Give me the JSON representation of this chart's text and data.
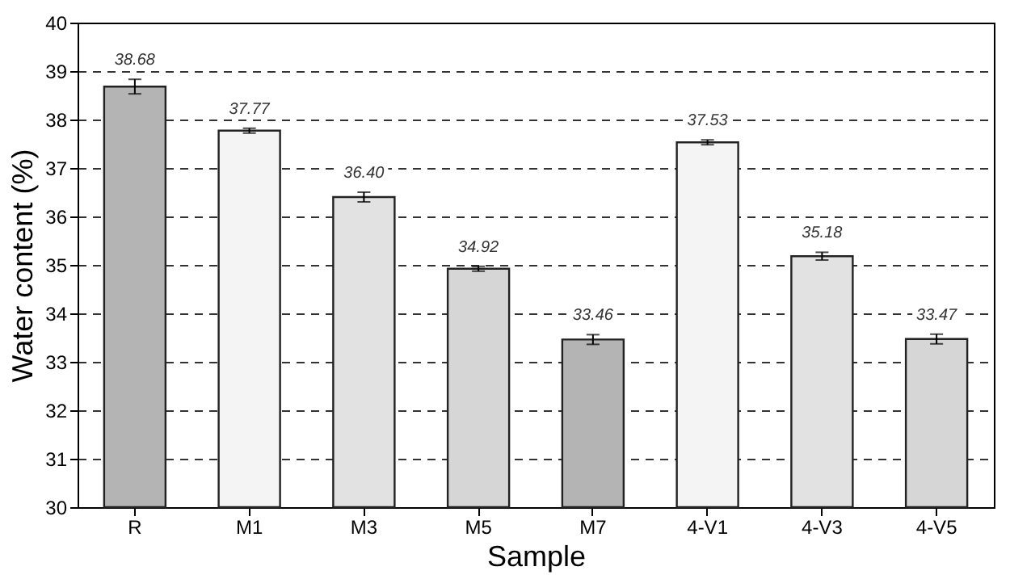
{
  "chart_data": {
    "type": "bar",
    "xlabel": "Sample",
    "ylabel": "Water content (%)",
    "categories": [
      "R",
      "M1",
      "M3",
      "M5",
      "M7",
      "4-V1",
      "4-V3",
      "4-V5"
    ],
    "values": [
      38.68,
      37.77,
      36.4,
      34.92,
      33.46,
      37.53,
      35.18,
      33.47
    ],
    "colors": [
      "#b4b4b4",
      "#f4f4f4",
      "#e2e2e2",
      "#d6d6d6",
      "#b4b4b4",
      "#f4f4f4",
      "#e2e2e2",
      "#d6d6d6"
    ],
    "value_labels": [
      "38.68",
      "37.77",
      "36.40",
      "34.92",
      "33.46",
      "37.53",
      "35.18",
      "33.47"
    ],
    "errors": [
      0.15,
      0.05,
      0.1,
      0.05,
      0.1,
      0.05,
      0.08,
      0.1
    ],
    "ylim": [
      30,
      40
    ],
    "yticks": [
      30,
      31,
      32,
      33,
      34,
      35,
      36,
      37,
      38,
      39,
      40
    ],
    "grid": "y"
  }
}
